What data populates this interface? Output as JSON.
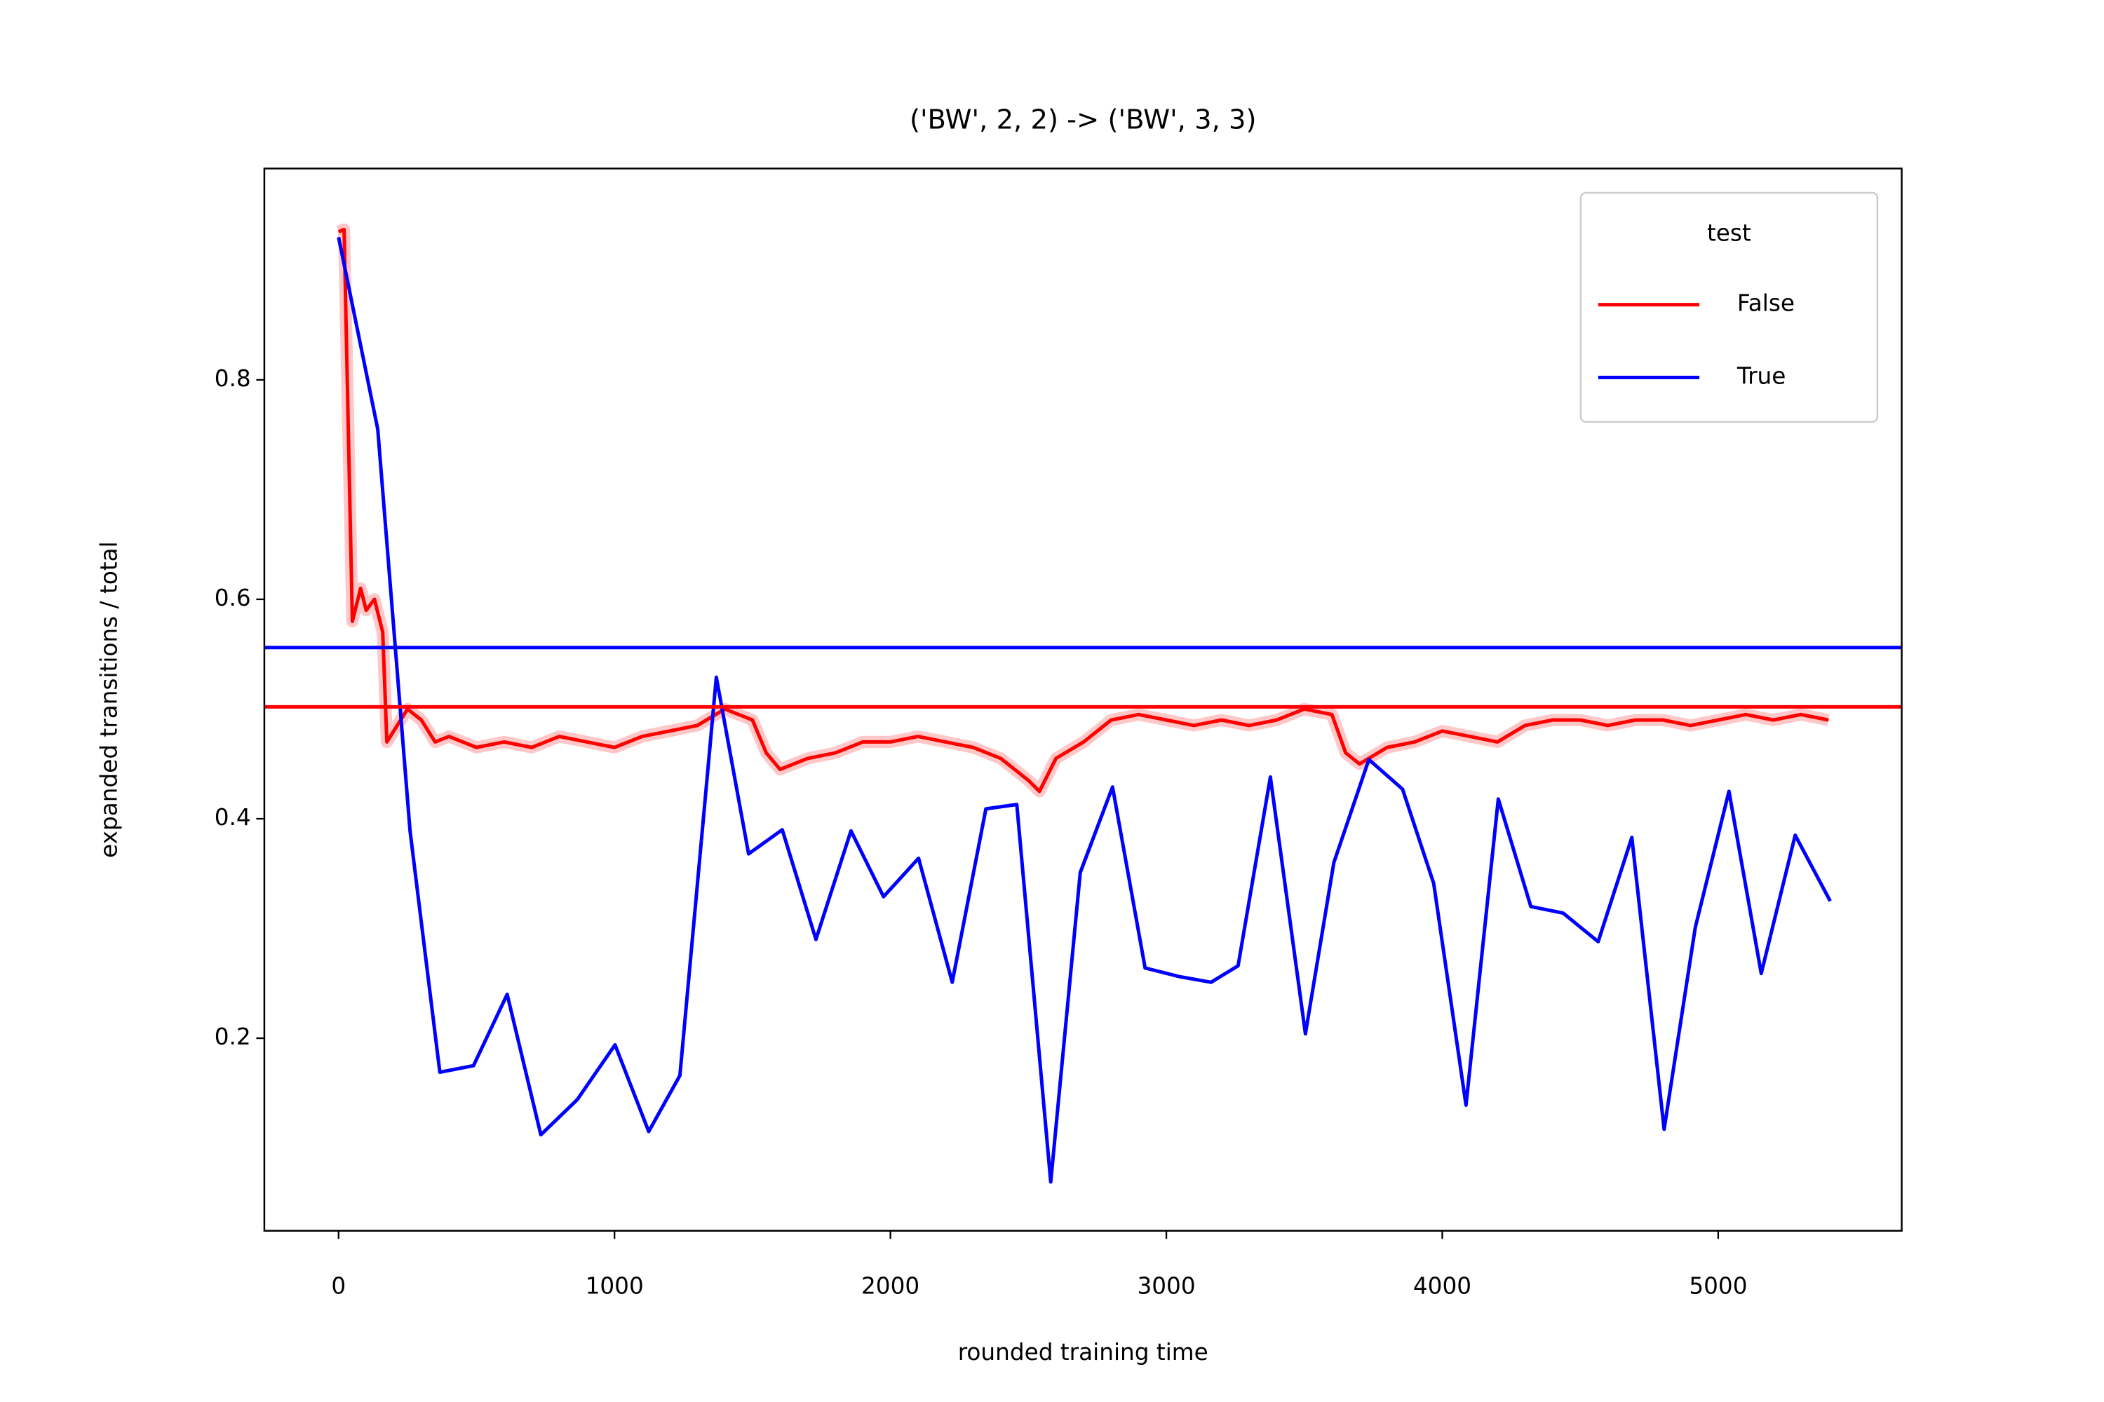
{
  "chart_data": {
    "type": "line",
    "title": "('BW', 2, 2) -> ('BW', 3, 3)",
    "x_label": "rounded training time",
    "y_label": "expanded transitions / total",
    "legend_title": "test",
    "legend": "upper right",
    "xlim": [
      -269,
      5665
    ],
    "ylim": [
      0.0245,
      0.9926
    ],
    "xticks": [
      0,
      1000,
      2000,
      3000,
      4000,
      5000
    ],
    "yticks": [
      0.2,
      0.4,
      0.6,
      0.8
    ],
    "series": [
      {
        "name": "False",
        "color": "#ff0000",
        "band": true,
        "x": [
          0,
          20,
          50,
          80,
          100,
          130,
          160,
          175,
          200,
          250,
          300,
          350,
          400,
          500,
          600,
          700,
          800,
          900,
          1000,
          1100,
          1200,
          1300,
          1400,
          1500,
          1550,
          1600,
          1700,
          1800,
          1900,
          2000,
          2100,
          2200,
          2300,
          2400,
          2500,
          2540,
          2600,
          2700,
          2800,
          2900,
          3000,
          3100,
          3200,
          3300,
          3400,
          3500,
          3600,
          3650,
          3700,
          3800,
          3900,
          4000,
          4100,
          4200,
          4300,
          4400,
          4500,
          4600,
          4700,
          4800,
          4900,
          5000,
          5100,
          5200,
          5300,
          5400
        ],
        "values": [
          0.935,
          0.937,
          0.58,
          0.61,
          0.59,
          0.6,
          0.57,
          0.47,
          0.48,
          0.5,
          0.49,
          0.47,
          0.475,
          0.465,
          0.47,
          0.465,
          0.475,
          0.47,
          0.465,
          0.475,
          0.48,
          0.485,
          0.5,
          0.49,
          0.46,
          0.445,
          0.455,
          0.46,
          0.47,
          0.47,
          0.475,
          0.47,
          0.465,
          0.455,
          0.435,
          0.425,
          0.455,
          0.47,
          0.49,
          0.495,
          0.49,
          0.485,
          0.49,
          0.485,
          0.49,
          0.5,
          0.495,
          0.46,
          0.45,
          0.465,
          0.47,
          0.48,
          0.475,
          0.47,
          0.485,
          0.49,
          0.49,
          0.485,
          0.49,
          0.49,
          0.485,
          0.49,
          0.495,
          0.49,
          0.495,
          0.49
        ]
      },
      {
        "name": "True",
        "color": "#0000ff",
        "band": false,
        "x": [
          0,
          142,
          259,
          367,
          489,
          611,
          733,
          865,
          1002,
          1124,
          1237,
          1369,
          1486,
          1608,
          1730,
          1857,
          1975,
          2102,
          2224,
          2346,
          2458,
          2581,
          2688,
          2805,
          2923,
          3050,
          3162,
          3260,
          3377,
          3504,
          3607,
          3734,
          3856,
          3969,
          4086,
          4203,
          4321,
          4438,
          4565,
          4687,
          4804,
          4917,
          5039,
          5156,
          5279,
          5406
        ],
        "values": [
          0.93,
          0.755,
          0.389,
          0.169,
          0.175,
          0.24,
          0.112,
          0.144,
          0.194,
          0.115,
          0.166,
          0.529,
          0.368,
          0.39,
          0.29,
          0.389,
          0.329,
          0.364,
          0.251,
          0.409,
          0.413,
          0.069,
          0.351,
          0.429,
          0.264,
          0.256,
          0.251,
          0.266,
          0.438,
          0.204,
          0.36,
          0.454,
          0.427,
          0.341,
          0.139,
          0.418,
          0.32,
          0.314,
          0.288,
          0.383,
          0.117,
          0.301,
          0.425,
          0.259,
          0.385,
          0.325
        ]
      }
    ],
    "hlines": [
      {
        "value": 0.556,
        "color": "#0000ff"
      },
      {
        "value": 0.502,
        "color": "#ff0000"
      }
    ]
  }
}
